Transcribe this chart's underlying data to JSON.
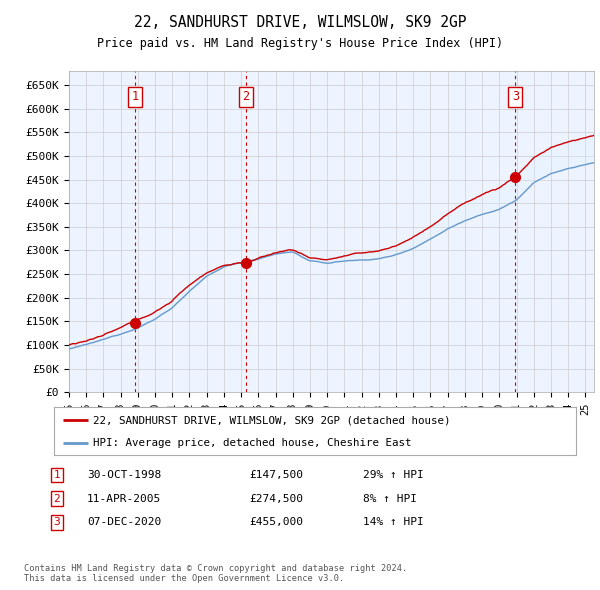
{
  "title": "22, SANDHURST DRIVE, WILMSLOW, SK9 2GP",
  "subtitle": "Price paid vs. HM Land Registry's House Price Index (HPI)",
  "legend_label_red": "22, SANDHURST DRIVE, WILMSLOW, SK9 2GP (detached house)",
  "legend_label_blue": "HPI: Average price, detached house, Cheshire East",
  "footer": "Contains HM Land Registry data © Crown copyright and database right 2024.\nThis data is licensed under the Open Government Licence v3.0.",
  "transactions": [
    {
      "num": 1,
      "date": "30-OCT-1998",
      "price": 147500,
      "pct": "29%",
      "dir": "↑",
      "year": 1998.83
    },
    {
      "num": 2,
      "date": "11-APR-2005",
      "price": 274500,
      "pct": "8%",
      "dir": "↑",
      "year": 2005.28
    },
    {
      "num": 3,
      "date": "07-DEC-2020",
      "price": 455000,
      "pct": "14%",
      "dir": "↑",
      "year": 2020.93
    }
  ],
  "ylim": [
    0,
    680000
  ],
  "yticks": [
    0,
    50000,
    100000,
    150000,
    200000,
    250000,
    300000,
    350000,
    400000,
    450000,
    500000,
    550000,
    600000,
    650000
  ],
  "ytick_labels": [
    "£0",
    "£50K",
    "£100K",
    "£150K",
    "£200K",
    "£250K",
    "£300K",
    "£350K",
    "£400K",
    "£450K",
    "£500K",
    "£550K",
    "£600K",
    "£650K"
  ],
  "xlim_start": 1995.0,
  "xlim_end": 2025.5,
  "red_color": "#cc0000",
  "blue_color": "#6699cc",
  "shade_color": "#ddeeff",
  "grid_color": "#cccccc",
  "vline_color": "#cc0000",
  "box_color": "#cc0000",
  "background_plot": "#eef4ff",
  "background_fig": "#ffffff"
}
